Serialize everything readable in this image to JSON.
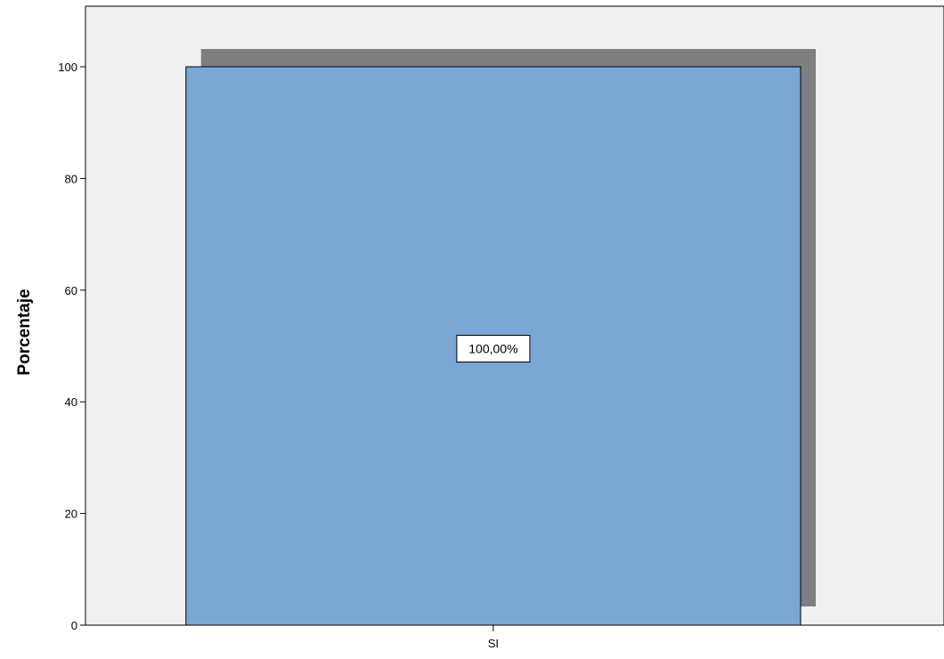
{
  "chart_data": {
    "type": "bar",
    "categories": [
      "SI"
    ],
    "values": [
      100
    ],
    "data_labels": [
      "100,00%"
    ],
    "ylabel": "Porcentaje",
    "ylim": [
      0,
      110
    ],
    "yticks": [
      0,
      20,
      40,
      60,
      80,
      100
    ],
    "yticks_labels": [
      "0",
      "20",
      "40",
      "60",
      "80",
      "100"
    ],
    "grid": false,
    "legend": "none",
    "colors": {
      "plot_background": "#f0f0f0",
      "bar_fill": "#7aa7d4",
      "bar_shadow": "#7f7f7f",
      "bar_stroke": "#000000",
      "axis": "#000000"
    }
  }
}
